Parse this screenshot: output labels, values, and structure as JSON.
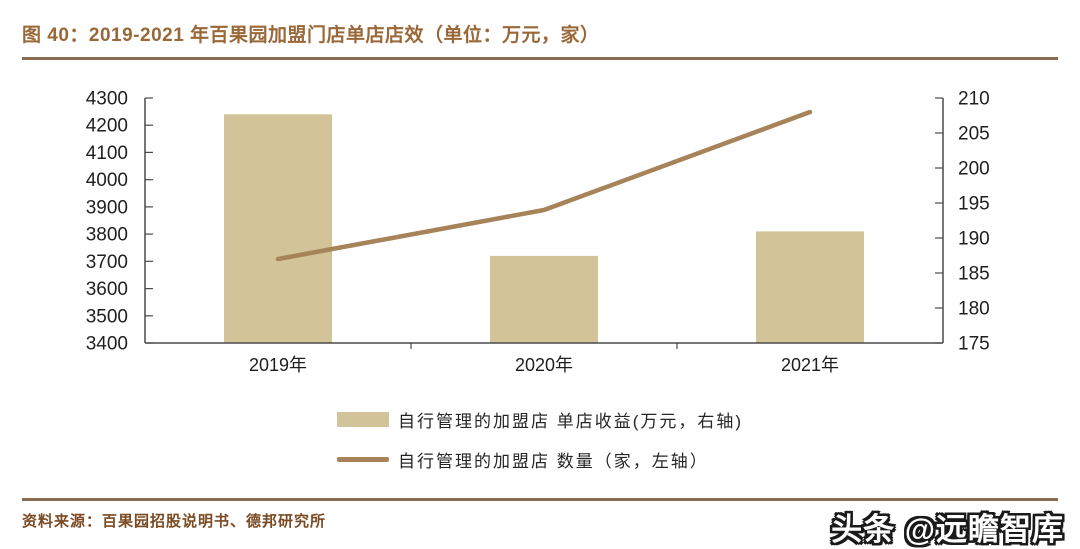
{
  "header": {
    "title": "图 40：2019-2021 年百果园加盟门店单店店效（单位：万元，家）"
  },
  "chart_data": {
    "type": "combo",
    "title": "图 40：2019-2021 年百果园加盟门店单店店效（单位：万元，家）",
    "categories": [
      "2019年",
      "2020年",
      "2021年"
    ],
    "series": [
      {
        "name": "自行管理的加盟店 单店收益(万元，右轴)",
        "type": "bar",
        "plotted_against": "left",
        "values": [
          4240,
          3720,
          3810
        ],
        "color": "#D2C398"
      },
      {
        "name": "自行管理的加盟店 数量（家，左轴）",
        "type": "line",
        "plotted_against": "right",
        "values": [
          187,
          194,
          208
        ],
        "color": "#A68358"
      }
    ],
    "axes": {
      "left": {
        "min": 3400,
        "max": 4300,
        "step": 100,
        "ticks": [
          4300,
          4200,
          4100,
          4000,
          3900,
          3800,
          3700,
          3600,
          3500,
          3400
        ]
      },
      "right": {
        "min": 175,
        "max": 210,
        "step": 5,
        "ticks": [
          210,
          205,
          200,
          195,
          190,
          185,
          180,
          175
        ]
      }
    },
    "legend": [
      {
        "label": "自行管理的加盟店 单店收益(万元，右轴)",
        "swatch": "bar"
      },
      {
        "label": "自行管理的加盟店 数量（家，左轴）",
        "swatch": "line"
      }
    ],
    "grid": false,
    "legend_position": "bottom"
  },
  "source": {
    "text": "资料来源：百果园招股说明书、德邦研究所"
  },
  "watermark": {
    "text": "头条 @远瞻智库"
  },
  "colors": {
    "title": "#9A6838",
    "rule": "#8D6B52",
    "bar": "#D2C398",
    "line": "#A68358",
    "axis": "#4a4a4a",
    "source_text": "#7B4A22"
  }
}
